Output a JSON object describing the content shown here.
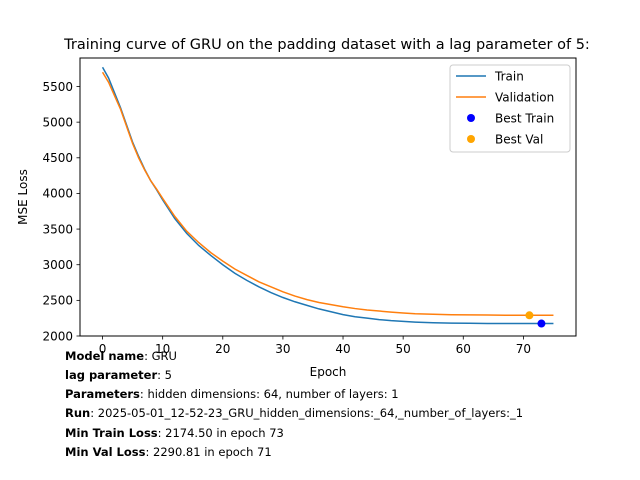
{
  "chart_data": {
    "type": "line",
    "title": "Training curve of GRU on the padding dataset with a lag parameter of 5:",
    "xlabel": "Epoch",
    "ylabel": "MSE Loss",
    "xlim": [
      -3.75,
      78.75
    ],
    "ylim": [
      2000,
      5900
    ],
    "x_ticks": [
      0,
      10,
      20,
      30,
      40,
      50,
      60,
      70
    ],
    "y_ticks": [
      2000,
      2500,
      3000,
      3500,
      4000,
      4500,
      5000,
      5500
    ],
    "grid": false,
    "legend_position": "top-right",
    "series": [
      {
        "name": "Train",
        "color": "#1f77b4",
        "points": [
          [
            0,
            5770
          ],
          [
            1,
            5620
          ],
          [
            2,
            5410
          ],
          [
            3,
            5200
          ],
          [
            4,
            4960
          ],
          [
            5,
            4720
          ],
          [
            6,
            4520
          ],
          [
            7,
            4340
          ],
          [
            8,
            4180
          ],
          [
            9,
            4050
          ],
          [
            10,
            3910
          ],
          [
            12,
            3650
          ],
          [
            14,
            3440
          ],
          [
            16,
            3270
          ],
          [
            18,
            3130
          ],
          [
            20,
            3000
          ],
          [
            22,
            2880
          ],
          [
            24,
            2780
          ],
          [
            26,
            2690
          ],
          [
            28,
            2610
          ],
          [
            30,
            2540
          ],
          [
            32,
            2480
          ],
          [
            34,
            2430
          ],
          [
            36,
            2380
          ],
          [
            38,
            2340
          ],
          [
            40,
            2300
          ],
          [
            42,
            2270
          ],
          [
            44,
            2250
          ],
          [
            46,
            2230
          ],
          [
            48,
            2215
          ],
          [
            50,
            2205
          ],
          [
            52,
            2195
          ],
          [
            55,
            2185
          ],
          [
            58,
            2180
          ],
          [
            61,
            2178
          ],
          [
            64,
            2176
          ],
          [
            67,
            2175
          ],
          [
            70,
            2175
          ],
          [
            73,
            2174.5
          ],
          [
            75,
            2175
          ]
        ]
      },
      {
        "name": "Validation",
        "color": "#ff7f0e",
        "points": [
          [
            0,
            5700
          ],
          [
            1,
            5560
          ],
          [
            2,
            5370
          ],
          [
            3,
            5180
          ],
          [
            4,
            4940
          ],
          [
            5,
            4700
          ],
          [
            6,
            4500
          ],
          [
            7,
            4330
          ],
          [
            8,
            4180
          ],
          [
            9,
            4060
          ],
          [
            10,
            3930
          ],
          [
            12,
            3680
          ],
          [
            14,
            3470
          ],
          [
            16,
            3310
          ],
          [
            18,
            3170
          ],
          [
            20,
            3050
          ],
          [
            22,
            2940
          ],
          [
            24,
            2850
          ],
          [
            26,
            2760
          ],
          [
            28,
            2690
          ],
          [
            30,
            2620
          ],
          [
            32,
            2560
          ],
          [
            34,
            2510
          ],
          [
            36,
            2470
          ],
          [
            38,
            2440
          ],
          [
            40,
            2410
          ],
          [
            42,
            2385
          ],
          [
            44,
            2365
          ],
          [
            46,
            2350
          ],
          [
            48,
            2335
          ],
          [
            50,
            2322
          ],
          [
            52,
            2312
          ],
          [
            55,
            2305
          ],
          [
            58,
            2299
          ],
          [
            61,
            2296
          ],
          [
            64,
            2294
          ],
          [
            67,
            2292
          ],
          [
            70,
            2291
          ],
          [
            71,
            2290.81
          ],
          [
            73,
            2291
          ],
          [
            75,
            2292
          ]
        ]
      }
    ],
    "markers": [
      {
        "name": "Best Train",
        "color": "#0000ff",
        "x": 73,
        "y": 2174.5
      },
      {
        "name": "Best Val",
        "color": "#ffa500",
        "x": 71,
        "y": 2290.81
      }
    ]
  },
  "info": {
    "model_key": "Model name",
    "model_val": ": GRU",
    "lag_key": "lag parameter",
    "lag_val": ": 5",
    "params_key": "Parameters",
    "params_val": ": hidden dimensions: 64, number of layers: 1",
    "run_key": "Run",
    "run_val": ": 2025-05-01_12-52-23_GRU_hidden_dimensions:_64,_number_of_layers:_1",
    "min_train_key": "Min Train Loss",
    "min_train_val": ": 2174.50 in epoch 73",
    "min_val_key": "Min Val Loss",
    "min_val_val": ": 2290.81 in epoch 71"
  }
}
